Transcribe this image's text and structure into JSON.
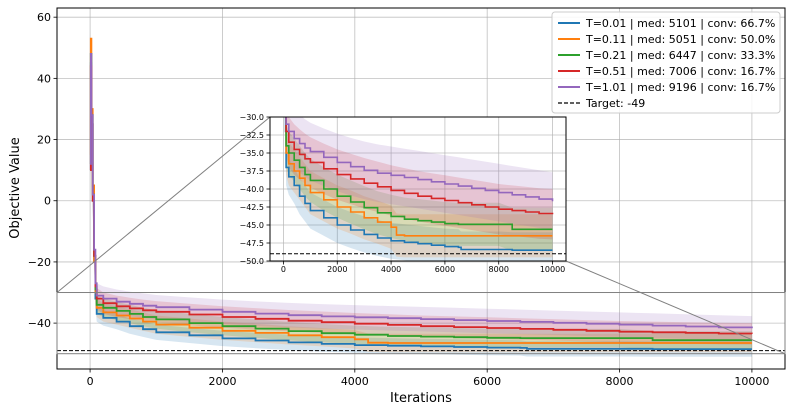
{
  "chart_data": {
    "type": "line",
    "xlabel": "Iterations",
    "ylabel": "Objective Value",
    "xlim": [
      -500,
      10500
    ],
    "ylim": [
      -55,
      63
    ],
    "xticks": [
      0,
      2000,
      4000,
      6000,
      8000,
      10000
    ],
    "yticks": [
      -40,
      -20,
      0,
      20,
      40,
      60
    ],
    "grid": true,
    "legend_position": "top-right",
    "target": {
      "label": "Target: -49",
      "value": -49
    },
    "series": [
      {
        "name": "T=0.01 | med: 5101 | conv: 66.7%",
        "color": "#1f77b4",
        "band": 2.5,
        "x": [
          0,
          10,
          20,
          40,
          60,
          80,
          100,
          200,
          400,
          600,
          800,
          1000,
          1500,
          2000,
          2500,
          3000,
          3500,
          4000,
          4500,
          5000,
          5500,
          6000,
          6500,
          6600,
          7000,
          7500,
          8000,
          8500,
          9000,
          9500,
          10000
        ],
        "y": [
          10,
          45,
          25,
          0,
          -20,
          -32,
          -37,
          -38.3,
          -39.5,
          -41,
          -42,
          -43,
          -44,
          -45,
          -45.7,
          -46.3,
          -46.8,
          -47.2,
          -47.4,
          -47.6,
          -47.8,
          -48,
          -48.1,
          -48.4,
          -48.4,
          -48.4,
          -48.4,
          -48.5,
          -48.5,
          -48.5,
          -48.5
        ]
      },
      {
        "name": "T=0.11 | med: 5051 | conv: 50.0%",
        "color": "#ff7f0e",
        "band": 3,
        "x": [
          0,
          10,
          20,
          40,
          60,
          80,
          100,
          200,
          400,
          600,
          800,
          1000,
          1500,
          2000,
          2500,
          3000,
          3500,
          4000,
          4200,
          4500,
          5000,
          5500,
          6000,
          6500,
          7000,
          7500,
          8000,
          8500,
          9000,
          9500,
          10000
        ],
        "y": [
          15,
          53,
          30,
          5,
          -20,
          -30,
          -35,
          -36.5,
          -37.5,
          -38.5,
          -39.5,
          -40.5,
          -41.5,
          -42.5,
          -43.2,
          -44,
          -44.6,
          -45.3,
          -46.4,
          -46.5,
          -46.5,
          -46.5,
          -46.5,
          -46.5,
          -46.5,
          -46.5,
          -46.5,
          -46.5,
          -46.5,
          -46.5,
          -46.5
        ]
      },
      {
        "name": "T=0.21 | med: 6447 | conv: 33.3%",
        "color": "#2ca02c",
        "band": 3,
        "x": [
          0,
          10,
          20,
          40,
          60,
          80,
          100,
          200,
          400,
          600,
          800,
          1000,
          1500,
          2000,
          2500,
          3000,
          3500,
          4000,
          4500,
          5000,
          5500,
          6000,
          6500,
          7000,
          7500,
          8000,
          8500,
          9000,
          9500,
          10000
        ],
        "y": [
          12,
          48,
          28,
          2,
          -18,
          -29,
          -34,
          -35,
          -36,
          -37,
          -38,
          -38.8,
          -40,
          -41,
          -41.8,
          -42.6,
          -43.3,
          -43.8,
          -44.2,
          -44.4,
          -44.6,
          -44.8,
          -44.9,
          -44.9,
          -44.9,
          -44.9,
          -45.6,
          -45.6,
          -45.6,
          -45.6
        ]
      },
      {
        "name": "T=0.51 | med: 7006 | conv: 16.7%",
        "color": "#d62728",
        "band": 3.5,
        "x": [
          0,
          10,
          20,
          40,
          60,
          80,
          100,
          200,
          400,
          600,
          800,
          1000,
          1500,
          2000,
          2500,
          3000,
          3500,
          4000,
          4500,
          5000,
          5500,
          6000,
          6500,
          7000,
          7500,
          8000,
          8500,
          9000,
          9500,
          10000
        ],
        "y": [
          10,
          44,
          25,
          0,
          -18,
          -28,
          -32,
          -33.5,
          -34.5,
          -35.2,
          -35.8,
          -36.3,
          -37.2,
          -38,
          -38.6,
          -39.2,
          -39.7,
          -40.2,
          -40.6,
          -41,
          -41.3,
          -41.6,
          -41.9,
          -42.2,
          -42.5,
          -42.8,
          -43,
          -43.2,
          -43.4,
          -43.5
        ]
      },
      {
        "name": "T=1.01 | med: 9196 | conv: 16.7%",
        "color": "#9467bd",
        "band": 4,
        "x": [
          0,
          10,
          20,
          40,
          60,
          80,
          100,
          200,
          400,
          600,
          800,
          1000,
          1500,
          2000,
          2500,
          3000,
          3500,
          4000,
          4500,
          5000,
          5500,
          6000,
          6500,
          7000,
          7500,
          8000,
          8500,
          9000,
          9500,
          10000
        ],
        "y": [
          12,
          48,
          28,
          2,
          -16,
          -27,
          -31,
          -32,
          -33,
          -33.7,
          -34.3,
          -34.8,
          -35.6,
          -36.3,
          -36.9,
          -37.4,
          -37.8,
          -38.1,
          -38.4,
          -38.7,
          -39,
          -39.3,
          -39.6,
          -39.9,
          -40.2,
          -40.5,
          -40.8,
          -41.1,
          -41.4,
          -41.7
        ]
      }
    ],
    "inset": {
      "xlim": [
        -500,
        10500
      ],
      "ylim": [
        -50,
        -30
      ],
      "xticks": [
        0,
        2000,
        4000,
        6000,
        8000,
        10000
      ],
      "yticks": [
        -50,
        -47.5,
        -45,
        -42.5,
        -40,
        -37.5,
        -35,
        -32.5,
        -30
      ],
      "ytick_labels": [
        "−50.0",
        "−47.5",
        "−45.0",
        "−42.5",
        "−40.0",
        "−37.5",
        "−35.0",
        "−32.5",
        "−30.0"
      ]
    }
  }
}
